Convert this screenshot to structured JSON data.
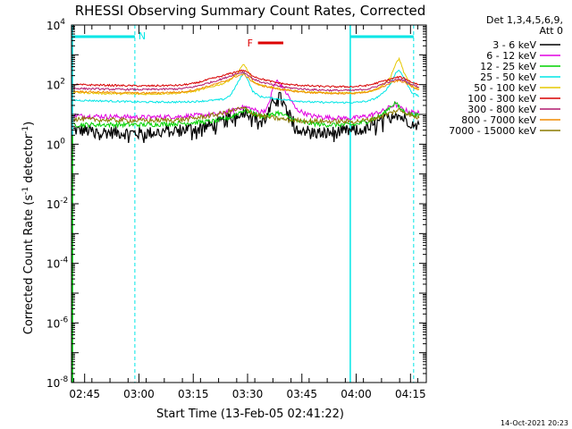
{
  "chart_data": {
    "type": "line",
    "title": "RHESSI Observing Summary Count Rates, Corrected",
    "xlabel": "Start Time (13-Feb-05 02:41:22)",
    "ylabel_main": "Corrected Count Rate (s",
    "ylabel_exp1": "-1",
    "ylabel_mid": " detector",
    "ylabel_exp2": "-1",
    "ylabel_end": ")",
    "y_scale": "log",
    "ylim": [
      1e-08,
      10000.0
    ],
    "xlim_minutes": [
      0,
      98
    ],
    "x_ticks": [
      {
        "label": "02:45",
        "t": 3.63
      },
      {
        "label": "03:00",
        "t": 18.63
      },
      {
        "label": "03:15",
        "t": 33.63
      },
      {
        "label": "03:30",
        "t": 48.63
      },
      {
        "label": "03:45",
        "t": 63.63
      },
      {
        "label": "04:00",
        "t": 78.63
      },
      {
        "label": "04:15",
        "t": 93.63
      }
    ],
    "y_ticks": [
      {
        "exp": 4,
        "base": "10",
        "sup": "4"
      },
      {
        "exp": 2,
        "base": "10",
        "sup": "2"
      },
      {
        "exp": 0,
        "base": "10",
        "sup": "0"
      },
      {
        "exp": -2,
        "base": "10",
        "sup": "-2"
      },
      {
        "exp": -4,
        "base": "10",
        "sup": "-4"
      },
      {
        "exp": -6,
        "base": "10",
        "sup": "-6"
      },
      {
        "exp": -8,
        "base": "10",
        "sup": "-8"
      }
    ],
    "legend_header": [
      "Det 1,3,4,5,6,9,",
      "Att 0"
    ],
    "legend_placement": "right",
    "series": [
      {
        "name": "3 - 6 keV",
        "color": "#000000",
        "t": [
          0.5,
          10,
          20,
          30,
          40,
          44,
          46.5,
          48,
          50,
          52,
          54,
          56,
          56.8,
          58,
          60,
          62,
          66,
          70,
          74,
          78,
          82,
          86,
          88,
          89.5,
          90.5,
          92,
          94,
          96
        ],
        "y": [
          3,
          2.5,
          2.3,
          3,
          4.5,
          8,
          12,
          13,
          10,
          6,
          8,
          30,
          50,
          30,
          10,
          4,
          2.5,
          2.3,
          2.6,
          2.8,
          3.5,
          6,
          9,
          12,
          9,
          7,
          5.5,
          4.5
        ]
      },
      {
        "name": "6 - 12 keV",
        "color": "#e200e2",
        "t": [
          0.5,
          10,
          20,
          30,
          40,
          44,
          46.5,
          48,
          50,
          52,
          54,
          56,
          56.8,
          58,
          60,
          62,
          66,
          70,
          74,
          78,
          82,
          86,
          88,
          89.5,
          90.5,
          92,
          94,
          96
        ],
        "y": [
          9,
          8.5,
          8,
          8.5,
          10,
          13,
          17,
          18,
          15,
          12,
          15,
          100,
          130,
          90,
          40,
          15,
          9,
          8,
          7.5,
          7.5,
          9,
          13,
          18,
          22,
          17,
          14,
          12,
          11
        ]
      },
      {
        "name": "12 - 25 keV",
        "color": "#00d200",
        "t": [
          0.5,
          10,
          20,
          30,
          40,
          44,
          46.5,
          48,
          50,
          52,
          54,
          56,
          56.8,
          58,
          60,
          62,
          66,
          70,
          74,
          78,
          82,
          86,
          88,
          89.5,
          90.5,
          92,
          94,
          96
        ],
        "y": [
          4.5,
          4.5,
          4.5,
          5,
          6,
          8,
          12,
          14,
          11,
          9,
          9,
          10,
          12,
          10,
          8,
          6,
          5,
          4.5,
          4.5,
          4.5,
          6,
          10,
          18,
          25,
          17,
          12,
          10,
          9
        ]
      },
      {
        "name": "25 - 50 keV",
        "color": "#00e6e6",
        "t": [
          0.5,
          10,
          20,
          30,
          34,
          38,
          42,
          44,
          46,
          47.5,
          48.5,
          50,
          52,
          56,
          60,
          66,
          72,
          78,
          82,
          84,
          86,
          88,
          89.5,
          90.5,
          92,
          94,
          96
        ],
        "y": [
          30,
          28,
          26,
          26,
          27,
          29,
          32,
          45,
          120,
          250,
          170,
          60,
          40,
          34,
          30,
          26,
          25,
          25,
          28,
          35,
          50,
          100,
          240,
          320,
          150,
          55,
          40
        ]
      },
      {
        "name": "50 - 100 keV",
        "color": "#e6c800",
        "t": [
          0.5,
          10,
          20,
          30,
          34,
          38,
          42,
          44,
          46,
          47.5,
          48.5,
          50,
          52,
          56,
          60,
          66,
          72,
          78,
          82,
          84,
          86,
          88,
          89.5,
          90.5,
          92,
          94,
          96
        ],
        "y": [
          55,
          50,
          48,
          52,
          60,
          80,
          110,
          150,
          250,
          500,
          320,
          130,
          95,
          80,
          65,
          55,
          52,
          52,
          58,
          68,
          95,
          170,
          500,
          750,
          220,
          90,
          70
        ]
      },
      {
        "name": "100 - 300 keV",
        "color": "#d80000",
        "t": [
          0.5,
          10,
          20,
          30,
          34,
          38,
          42,
          44,
          46,
          47.5,
          48.5,
          50,
          52,
          56,
          60,
          66,
          72,
          78,
          82,
          84,
          86,
          88,
          89.5,
          90.5,
          92,
          94,
          96
        ],
        "y": [
          100,
          95,
          90,
          95,
          110,
          150,
          200,
          240,
          280,
          300,
          260,
          200,
          160,
          120,
          100,
          90,
          85,
          85,
          95,
          110,
          130,
          150,
          170,
          180,
          160,
          120,
          100
        ]
      },
      {
        "name": "300 - 800 keV",
        "color": "#b0186e",
        "t": [
          0.5,
          10,
          20,
          30,
          34,
          38,
          42,
          44,
          46,
          47.5,
          48.5,
          50,
          52,
          56,
          60,
          66,
          72,
          78,
          82,
          84,
          86,
          88,
          89.5,
          90.5,
          92,
          94,
          96
        ],
        "y": [
          75,
          70,
          68,
          72,
          85,
          115,
          160,
          200,
          240,
          260,
          220,
          160,
          125,
          95,
          78,
          68,
          64,
          64,
          72,
          85,
          105,
          125,
          145,
          150,
          135,
          100,
          82
        ]
      },
      {
        "name": "800 - 7000 keV",
        "color": "#f08c00",
        "t": [
          0.5,
          10,
          20,
          30,
          34,
          38,
          42,
          44,
          46,
          47.5,
          48.5,
          50,
          52,
          56,
          60,
          66,
          72,
          78,
          82,
          84,
          86,
          88,
          89.5,
          90.5,
          92,
          94,
          96
        ],
        "y": [
          60,
          55,
          52,
          56,
          66,
          90,
          125,
          160,
          200,
          220,
          180,
          125,
          95,
          75,
          62,
          54,
          51,
          51,
          57,
          68,
          85,
          110,
          130,
          135,
          120,
          85,
          68
        ]
      },
      {
        "name": "7000 - 15000 keV",
        "color": "#8a7a00",
        "t": [
          0.5,
          10,
          20,
          30,
          34,
          38,
          42,
          44,
          46,
          47.5,
          48.5,
          50,
          52,
          56,
          60,
          66,
          72,
          78,
          82,
          84,
          86,
          88,
          89.5,
          90.5,
          92,
          94,
          96
        ],
        "y": [
          7,
          6.5,
          6.2,
          6.5,
          7.5,
          9,
          11,
          13,
          15,
          16,
          14,
          11,
          9,
          7.5,
          6.5,
          6,
          5.8,
          5.8,
          6.5,
          7.5,
          9,
          11,
          13,
          14,
          12,
          9,
          7.5
        ]
      }
    ],
    "annotations": {
      "night_label": "N",
      "flare_label": "F",
      "date_stamp": "14-Oct-2021 20:23"
    },
    "night_intervals_minutes": [
      [
        0,
        17.5
      ],
      [
        77,
        94.5
      ]
    ],
    "flare_interval_minutes": [
      51.5,
      58.5
    ],
    "colors": {
      "night": "#00e6e6",
      "flare": "#dd0000",
      "axis": "#000000",
      "background": "#ffffff"
    }
  }
}
